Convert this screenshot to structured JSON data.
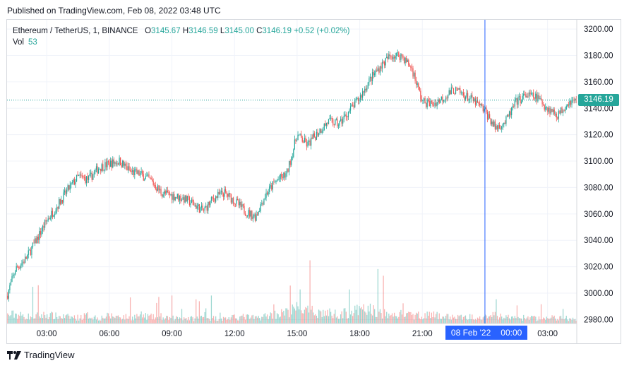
{
  "published": "Published on TradingView.com, Feb 08, 2022 03:48 UTC",
  "legend": {
    "symbol": "Ethereum / TetherUS, 1, BINANCE",
    "open_label": "O",
    "open": "3145.67",
    "high_label": "H",
    "high": "3146.59",
    "low_label": "L",
    "low": "3145.00",
    "close_label": "C",
    "close": "3146.19",
    "change": "+0.52 (+0.02%)",
    "vol_label": "Vol",
    "vol": "53"
  },
  "last_price_label": "3146.19",
  "crosshair_label": {
    "date": "08 Feb '22",
    "time": "00:00"
  },
  "brand": "TradingView",
  "colors": {
    "up": "#26a69a",
    "down": "#ef5350",
    "crosshair": "#2962ff",
    "grid": "#f0f3fa"
  },
  "chart_data": {
    "type": "candlestick",
    "interval": "1 minute",
    "y_ticks": [
      2980,
      3000,
      3020,
      3040,
      3060,
      3080,
      3100,
      3120,
      3140,
      3160,
      3180,
      3200
    ],
    "ylim": [
      2977,
      3207
    ],
    "x_ticks": [
      "03:00",
      "06:00",
      "09:00",
      "12:00",
      "15:00",
      "18:00",
      "21:00",
      "00:00",
      "03:00"
    ],
    "x_tick_hours": [
      3,
      6,
      9,
      12,
      15,
      18,
      21,
      24,
      27
    ],
    "xlim_hours": [
      1.1,
      28.4
    ],
    "last_price": 3146.19,
    "crosshair_hour": 24,
    "series": [
      {
        "name": "ETHUSDT close (approx.)",
        "hours": [
          1.1,
          1.5,
          2,
          2.5,
          3,
          3.5,
          4,
          4.5,
          5,
          5.5,
          6,
          6.5,
          7,
          7.5,
          8,
          8.5,
          9,
          9.5,
          10,
          10.5,
          11,
          11.5,
          12,
          12.5,
          13,
          13.5,
          14,
          14.5,
          15,
          15.5,
          16,
          16.5,
          17,
          17.5,
          18,
          18.5,
          19,
          19.5,
          20,
          20.5,
          21,
          21.5,
          22,
          22.5,
          23,
          23.5,
          24,
          24.5,
          25,
          25.5,
          26,
          26.5,
          27,
          27.5,
          28,
          28.4
        ],
        "close": [
          2998,
          3018,
          3026,
          3040,
          3055,
          3066,
          3078,
          3088,
          3086,
          3095,
          3098,
          3100,
          3092,
          3090,
          3085,
          3076,
          3074,
          3072,
          3068,
          3062,
          3072,
          3076,
          3070,
          3062,
          3058,
          3075,
          3085,
          3090,
          3120,
          3112,
          3122,
          3130,
          3128,
          3138,
          3148,
          3162,
          3172,
          3180,
          3180,
          3170,
          3145,
          3143,
          3148,
          3154,
          3150,
          3145,
          3138,
          3125,
          3130,
          3145,
          3150,
          3148,
          3140,
          3135,
          3145,
          3146.19
        ],
        "volume": [
          30,
          35,
          25,
          28,
          32,
          26,
          24,
          22,
          30,
          20,
          28,
          26,
          22,
          30,
          24,
          18,
          20,
          22,
          18,
          24,
          20,
          18,
          22,
          25,
          20,
          28,
          35,
          40,
          55,
          45,
          42,
          38,
          35,
          40,
          48,
          52,
          38,
          30,
          34,
          28,
          32,
          30,
          26,
          24,
          22,
          26,
          30,
          28,
          24,
          20,
          22,
          18,
          20,
          22,
          18,
          15
        ]
      }
    ]
  }
}
